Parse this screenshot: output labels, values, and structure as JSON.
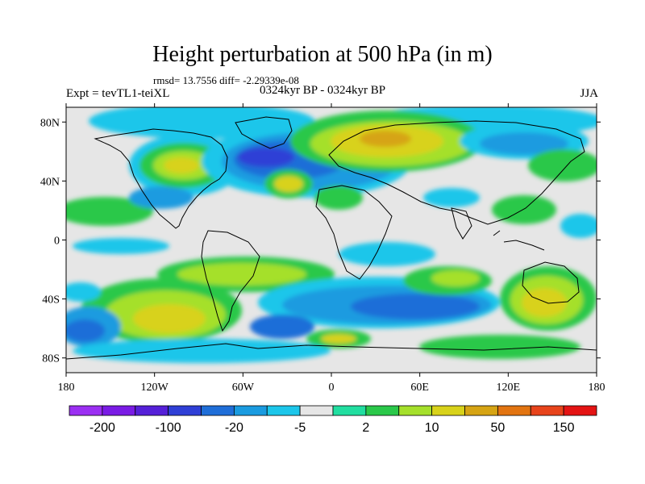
{
  "title": "Height perturbation at 500 hPa (in m)",
  "stats": "rmsd= 13.7556  diff= -2.29339e-08",
  "left_string": "Expt = tevTL1-teiXL",
  "center_string": "0324kyr BP - 0324kyr BP",
  "right_string": "JJA",
  "map": {
    "lon_range": [
      -180,
      180
    ],
    "lat_range": [
      -90,
      90
    ],
    "lon_ticks": [
      "180",
      "120W",
      "60W",
      "0",
      "60E",
      "120E",
      "180"
    ],
    "lat_ticks": [
      "80N",
      "40N",
      "0",
      "40S",
      "80S"
    ]
  },
  "colorbar": {
    "colors": [
      "#9b2ff2",
      "#7a1be5",
      "#5520d8",
      "#2f3fd6",
      "#1f6ed8",
      "#1a9be0",
      "#1cc6ea",
      "#e6e6e6",
      "#21dea0",
      "#2ac84a",
      "#a5e02b",
      "#d8d21a",
      "#d6a414",
      "#e27411",
      "#e8441b",
      "#e41414"
    ],
    "labels": [
      "-200",
      "-100",
      "-20",
      "-5",
      "2",
      "10",
      "50",
      "150"
    ]
  }
}
